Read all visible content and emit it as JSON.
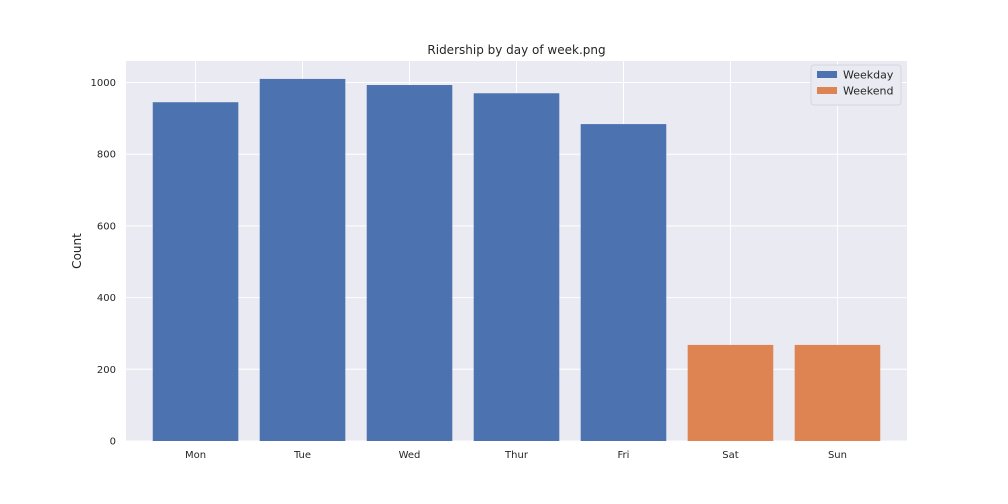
{
  "chart_data": {
    "type": "bar",
    "title": "Ridership by day of week.png",
    "xlabel": "",
    "ylabel": "Count",
    "categories": [
      "Mon",
      "Tue",
      "Wed",
      "Thur",
      "Fri",
      "Sat",
      "Sun"
    ],
    "values": [
      945,
      1010,
      993,
      970,
      884,
      268,
      268
    ],
    "groups": [
      "Weekday",
      "Weekday",
      "Weekday",
      "Weekday",
      "Weekday",
      "Weekend",
      "Weekend"
    ],
    "ylim": [
      0,
      1060
    ],
    "yticks": [
      0,
      200,
      400,
      600,
      800,
      1000
    ],
    "grid": true,
    "legend_placement": "top-right",
    "legend": [
      {
        "label": "Weekday",
        "color": "#4c72b0"
      },
      {
        "label": "Weekend",
        "color": "#dd8452"
      }
    ],
    "background_color": "#eaeaf2",
    "grid_color": "#ffffff"
  }
}
